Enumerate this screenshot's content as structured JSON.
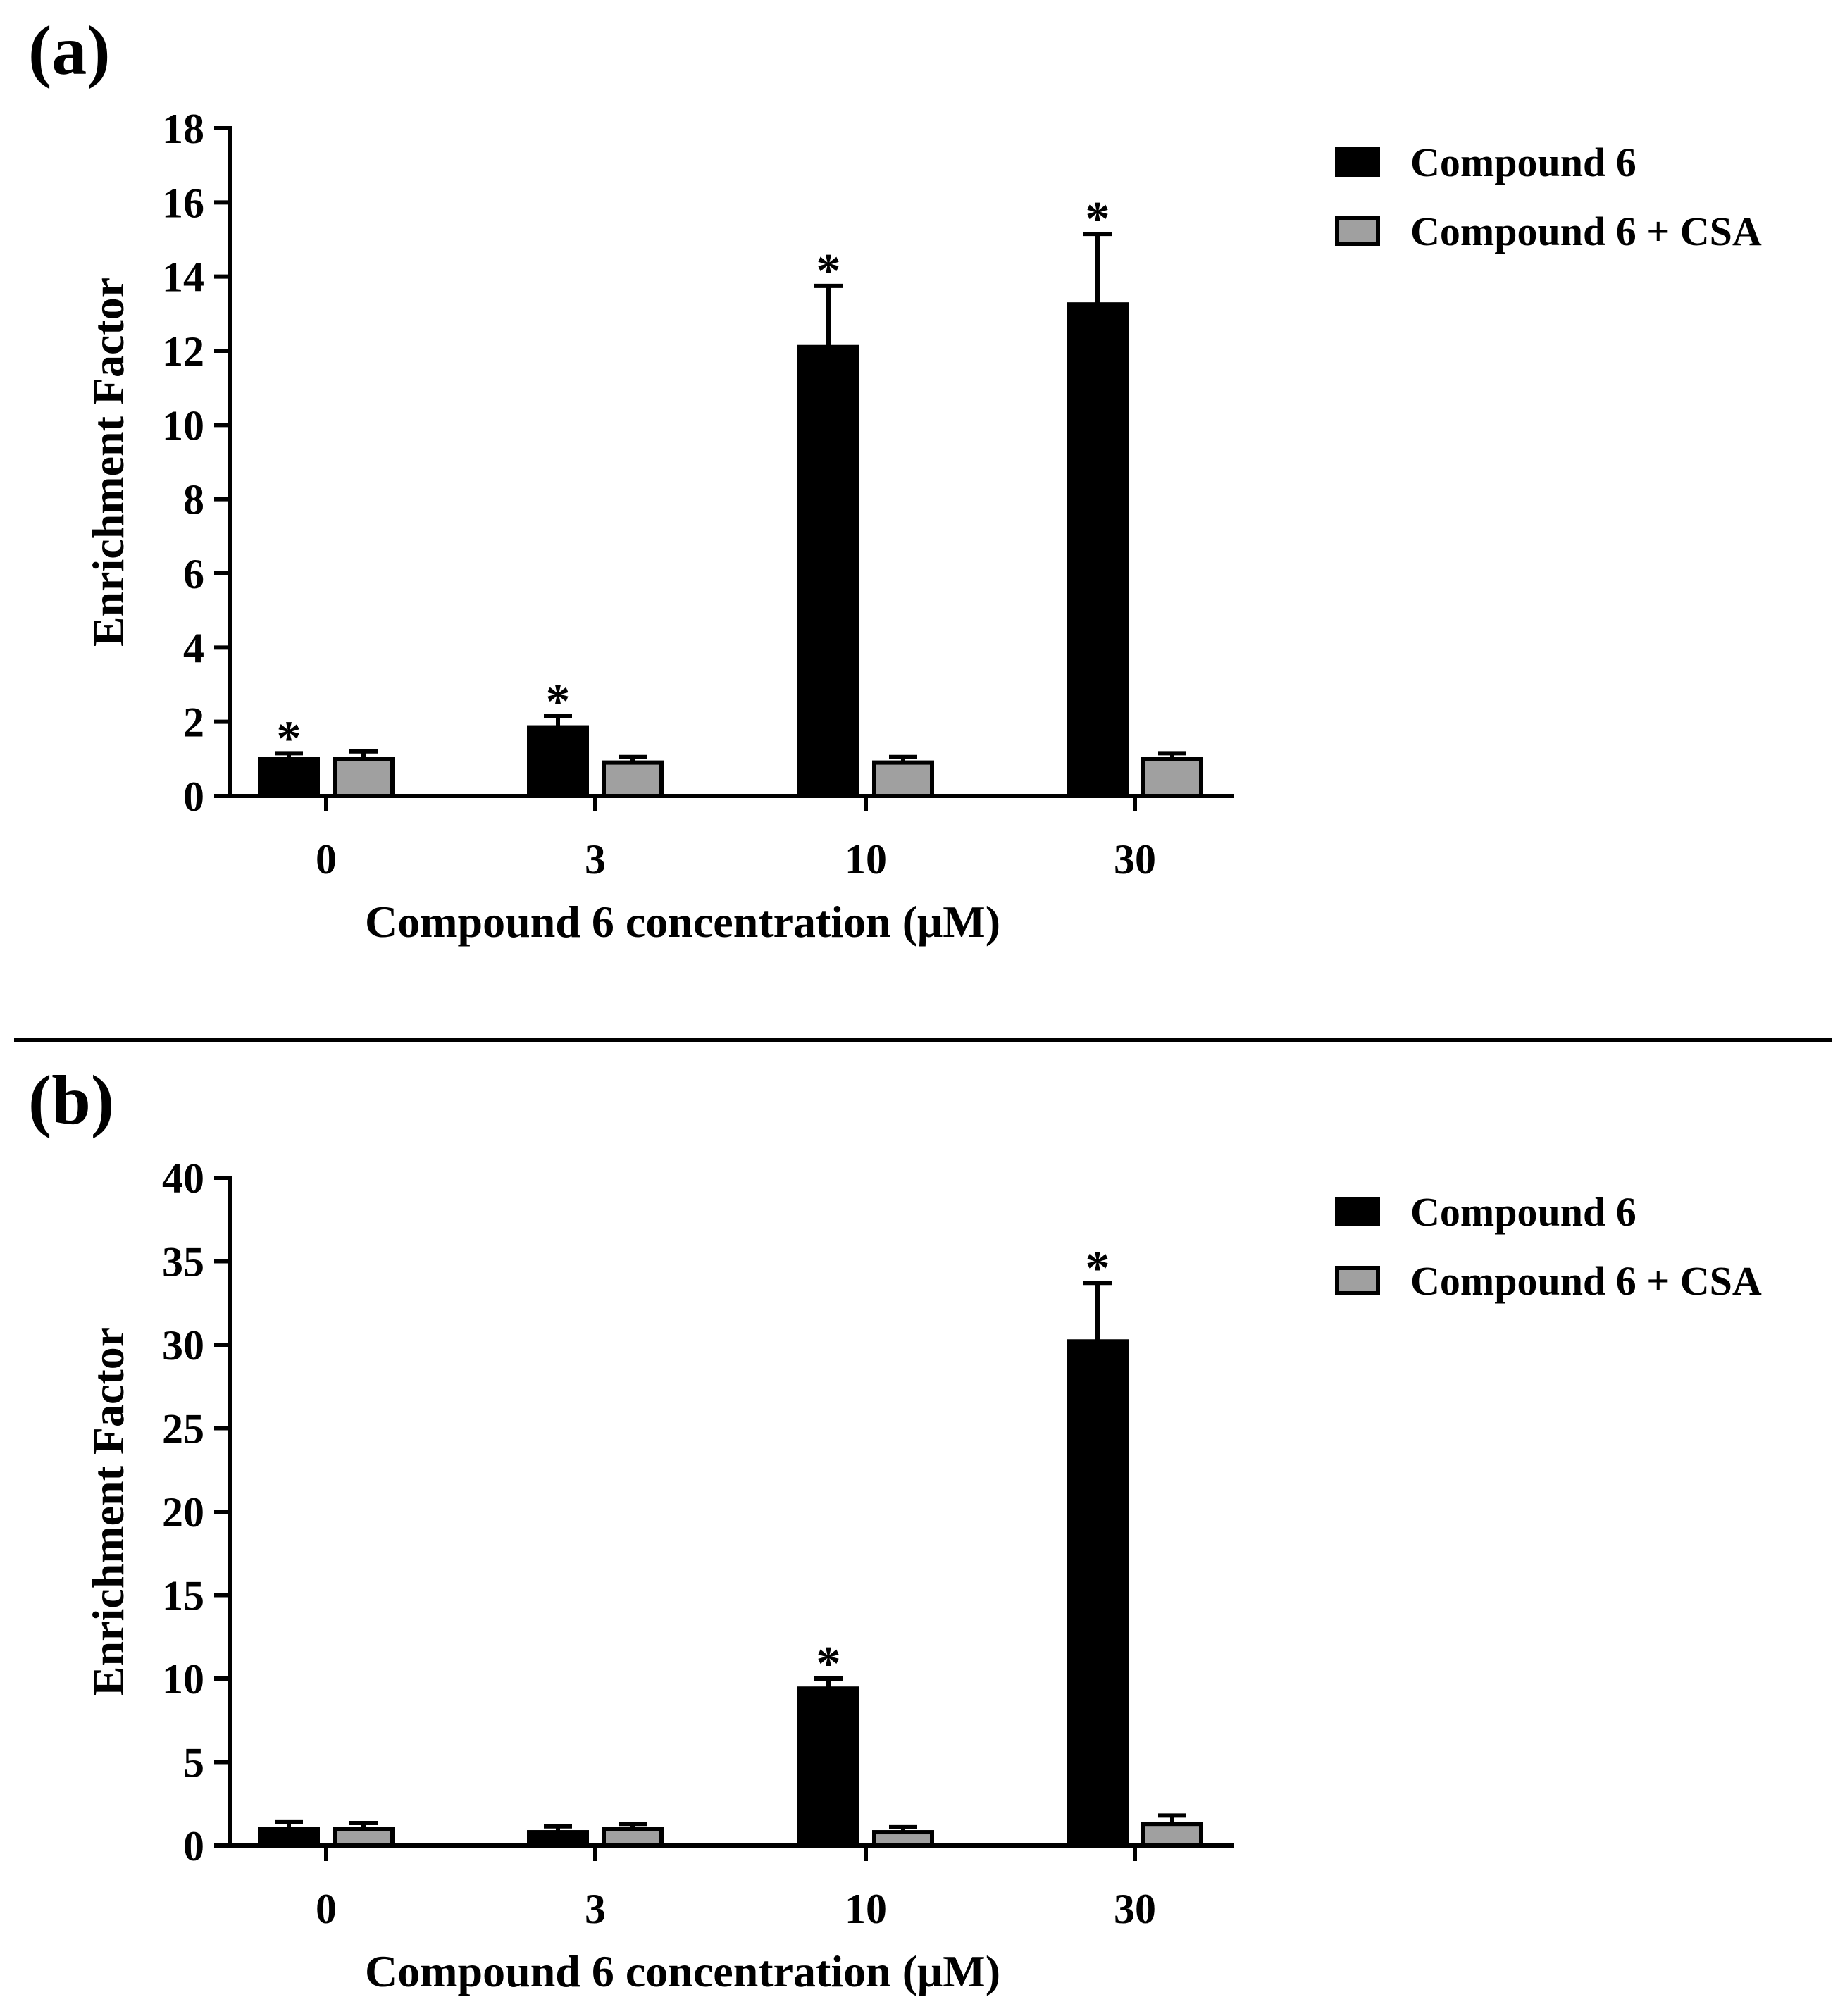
{
  "chart_data": [
    {
      "type": "bar",
      "panel_label": "(a)",
      "categories": [
        "0",
        "3",
        "10",
        "30"
      ],
      "series": [
        {
          "name": "Compound 6",
          "color": "#000000",
          "values": [
            1.0,
            1.85,
            12.1,
            13.25
          ],
          "errors": [
            0.15,
            0.3,
            1.65,
            1.9
          ]
        },
        {
          "name": "Compound 6 + CSA",
          "color": "#a0a0a0",
          "values": [
            1.0,
            0.9,
            0.9,
            1.0
          ],
          "errors": [
            0.2,
            0.15,
            0.15,
            0.15
          ]
        }
      ],
      "significance": [
        [
          "*",
          "*",
          "*",
          "*"
        ],
        [
          "",
          "",
          "",
          ""
        ]
      ],
      "xlabel": "Compound 6 concentration (μM)",
      "ylabel": "Enrichment Factor",
      "ylim": [
        0,
        18
      ],
      "yticks": [
        0,
        2,
        4,
        6,
        8,
        10,
        12,
        14,
        16,
        18
      ],
      "legend_position": "top-right"
    },
    {
      "type": "bar",
      "panel_label": "(b)",
      "categories": [
        "0",
        "3",
        "10",
        "30"
      ],
      "series": [
        {
          "name": "Compound 6",
          "color": "#000000",
          "values": [
            1.0,
            0.8,
            9.4,
            30.2
          ],
          "errors": [
            0.4,
            0.35,
            0.6,
            3.5
          ]
        },
        {
          "name": "Compound 6 + CSA",
          "color": "#a0a0a0",
          "values": [
            1.0,
            1.0,
            0.8,
            1.3
          ],
          "errors": [
            0.35,
            0.3,
            0.3,
            0.5
          ]
        }
      ],
      "significance": [
        [
          "",
          "",
          "*",
          "*"
        ],
        [
          "",
          "",
          "",
          ""
        ]
      ],
      "xlabel": "Compound 6 concentration (μM)",
      "ylabel": "Enrichment Factor",
      "ylim": [
        0,
        40
      ],
      "yticks": [
        0,
        5,
        10,
        15,
        20,
        25,
        30,
        35,
        40
      ],
      "legend_position": "top-right"
    }
  ]
}
